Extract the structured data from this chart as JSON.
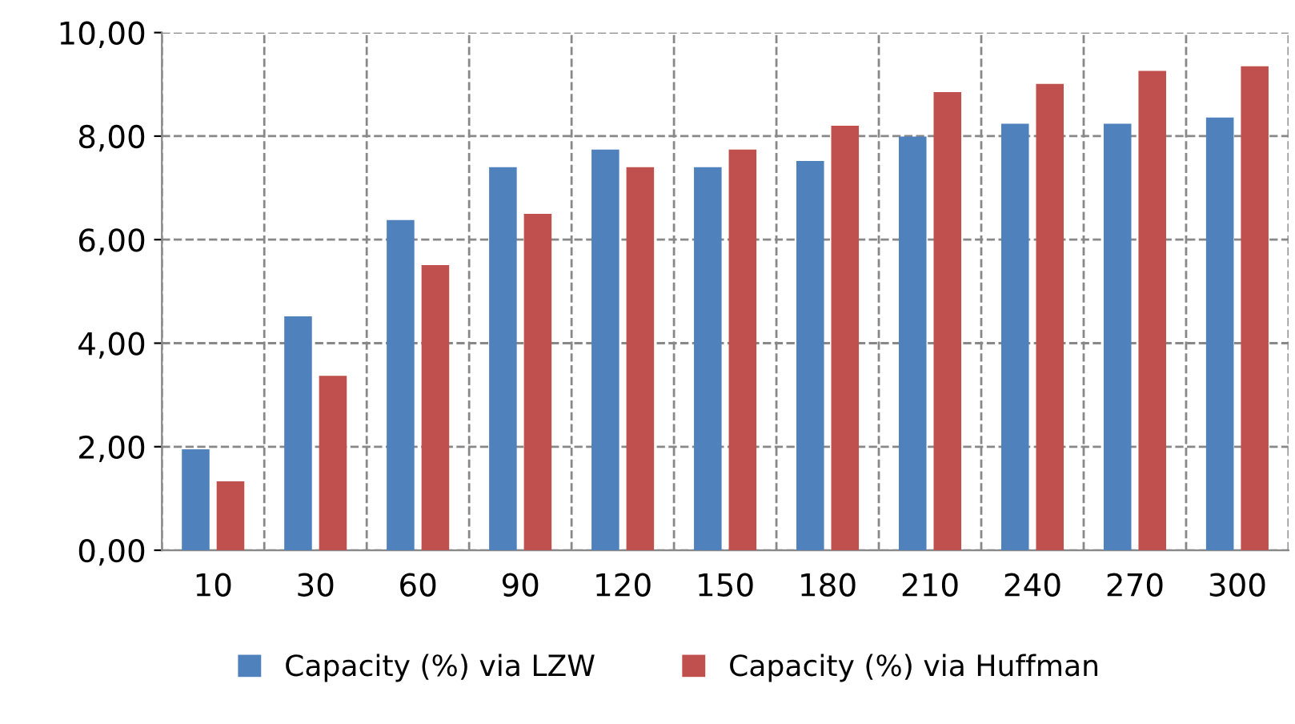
{
  "chart_data": {
    "type": "bar",
    "categories": [
      "10",
      "30",
      "60",
      "90",
      "120",
      "150",
      "180",
      "210",
      "240",
      "270",
      "300"
    ],
    "series": [
      {
        "name": "Capacity (%) via LZW",
        "color": "#4f81bd",
        "values": [
          1.95,
          4.52,
          6.38,
          7.4,
          7.74,
          7.4,
          7.52,
          7.99,
          8.24,
          8.24,
          8.36
        ]
      },
      {
        "name": "Capacity (%) via Huffman",
        "color": "#c0504d",
        "values": [
          1.33,
          3.37,
          5.51,
          6.5,
          7.4,
          7.74,
          8.2,
          8.85,
          9.01,
          9.26,
          9.35
        ]
      }
    ],
    "ylim": [
      0,
      10
    ],
    "yticks": [
      {
        "value": 0,
        "label": "0,00"
      },
      {
        "value": 2,
        "label": "2,00"
      },
      {
        "value": 4,
        "label": "4,00"
      },
      {
        "value": 6,
        "label": "6,00"
      },
      {
        "value": 8,
        "label": "8,00"
      },
      {
        "value": 10,
        "label": "10,00"
      }
    ],
    "grid": true,
    "line_style": "dashed",
    "legend": "bottom"
  }
}
